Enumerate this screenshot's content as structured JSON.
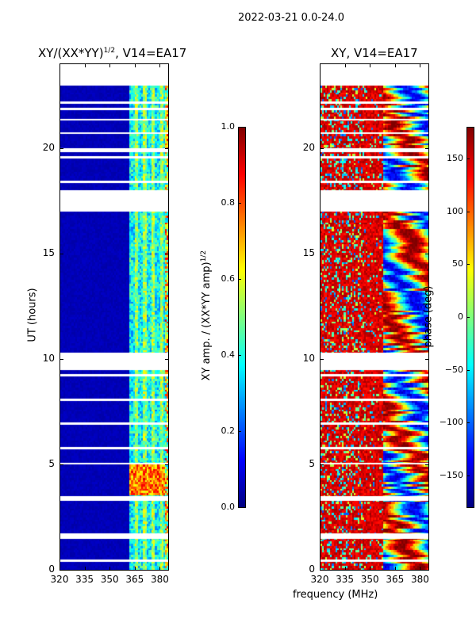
{
  "suptitle": "2022-03-21 0.0-24.0",
  "chart_data": [
    {
      "type": "heatmap",
      "title": "XY/(XX*YY)",
      "title_exponent": "1/2",
      "title_suffix": ", V14=EA17",
      "xlabel": "",
      "ylabel": "UT (hours)",
      "xlim": [
        320,
        385
      ],
      "ylim": [
        0,
        24
      ],
      "xticks": [
        "320",
        "335",
        "350",
        "365",
        "380"
      ],
      "yticks": [
        "0",
        "5",
        "10",
        "15",
        "20"
      ],
      "data_time_range": [
        0,
        23
      ],
      "flagged_hours": [
        [
          0.4,
          0.5
        ],
        [
          1.5,
          1.75
        ],
        [
          3.3,
          3.5
        ],
        [
          5.0,
          5.1
        ],
        [
          9.5,
          10.3
        ],
        [
          17.0,
          18.0
        ],
        [
          19.8,
          20.0
        ],
        [
          21.3,
          21.4
        ],
        [
          22.1,
          22.2
        ]
      ],
      "colormap": "jet",
      "value_description": "amplitude low (~0.05) below 362 MHz, ~0.3-0.6 above 362 MHz, peaks ~0.85 between 3.5 and 5 h",
      "colorbar": {
        "label": "XY amp. / (XX*YY amp)",
        "label_exponent": "1/2",
        "range": [
          0,
          1
        ],
        "ticks": [
          "0.0",
          "0.2",
          "0.4",
          "0.6",
          "0.8",
          "1.0"
        ]
      }
    },
    {
      "type": "heatmap",
      "title": "XY, V14=EA17",
      "xlabel": "frequency (MHz)",
      "ylabel": "",
      "xlim": [
        320,
        385
      ],
      "ylim": [
        0,
        24
      ],
      "xticks": [
        "320",
        "335",
        "350",
        "365",
        "380"
      ],
      "yticks": [
        "0",
        "5",
        "10",
        "15",
        "20"
      ],
      "data_time_range": [
        0,
        23
      ],
      "flagged_hours": [
        [
          0.4,
          0.5
        ],
        [
          1.5,
          1.75
        ],
        [
          3.3,
          3.5
        ],
        [
          5.0,
          5.1
        ],
        [
          9.5,
          10.3
        ],
        [
          17.0,
          18.0
        ],
        [
          19.8,
          20.0
        ],
        [
          21.3,
          21.4
        ],
        [
          22.1,
          22.2
        ]
      ],
      "colormap": "jet",
      "value_description": "phase mostly ~150 deg (red) at 320-358 MHz, varying blue/cyan/yellow above 358 MHz",
      "colorbar": {
        "label": "phase (deg)",
        "range": [
          -180,
          180
        ],
        "ticks": [
          "-150",
          "-100",
          "-50",
          "0",
          "50",
          "100",
          "150"
        ]
      }
    }
  ]
}
